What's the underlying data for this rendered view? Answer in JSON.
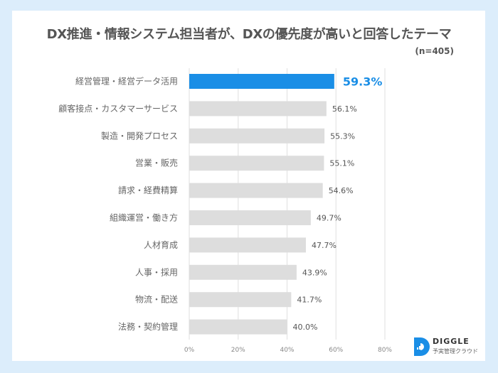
{
  "colors": {
    "background": "#dcedfb",
    "highlight_bar": "#1a8ee6",
    "bar": "#dddddd",
    "gridline": "#e4e4e4"
  },
  "chart_data": {
    "type": "bar",
    "orientation": "horizontal",
    "title": "DX推進・情報システム担当者が、DXの優先度が高いと回答したテーマ",
    "subtitle": "(n=405)",
    "xlabel": "",
    "ylabel": "",
    "xlim": [
      0,
      80
    ],
    "grid": true,
    "legend": "none",
    "categories": [
      "経営管理・経営データ活用",
      "顧客接点・カスタマーサービス",
      "製造・開発プロセス",
      "営業・販売",
      "請求・経費精算",
      "組織運営・働き方",
      "人材育成",
      "人事・採用",
      "物流・配送",
      "法務・契約管理"
    ],
    "values": [
      59.3,
      56.1,
      55.3,
      55.1,
      54.6,
      49.7,
      47.7,
      43.9,
      41.7,
      40.0
    ],
    "value_labels": [
      "59.3%",
      "56.1%",
      "55.3%",
      "55.1%",
      "54.6%",
      "49.7%",
      "47.7%",
      "43.9%",
      "41.7%",
      "40.0%"
    ],
    "highlight_index": 0,
    "x_ticks": [
      0,
      20,
      40,
      60,
      80
    ],
    "x_tick_labels": [
      "0%",
      "20%",
      "40%",
      "60%",
      "80%"
    ]
  },
  "logo": {
    "name": "DIGGLE",
    "tagline": "予実管理クラウド",
    "icon": "diggle-d-bar-chart-icon"
  }
}
